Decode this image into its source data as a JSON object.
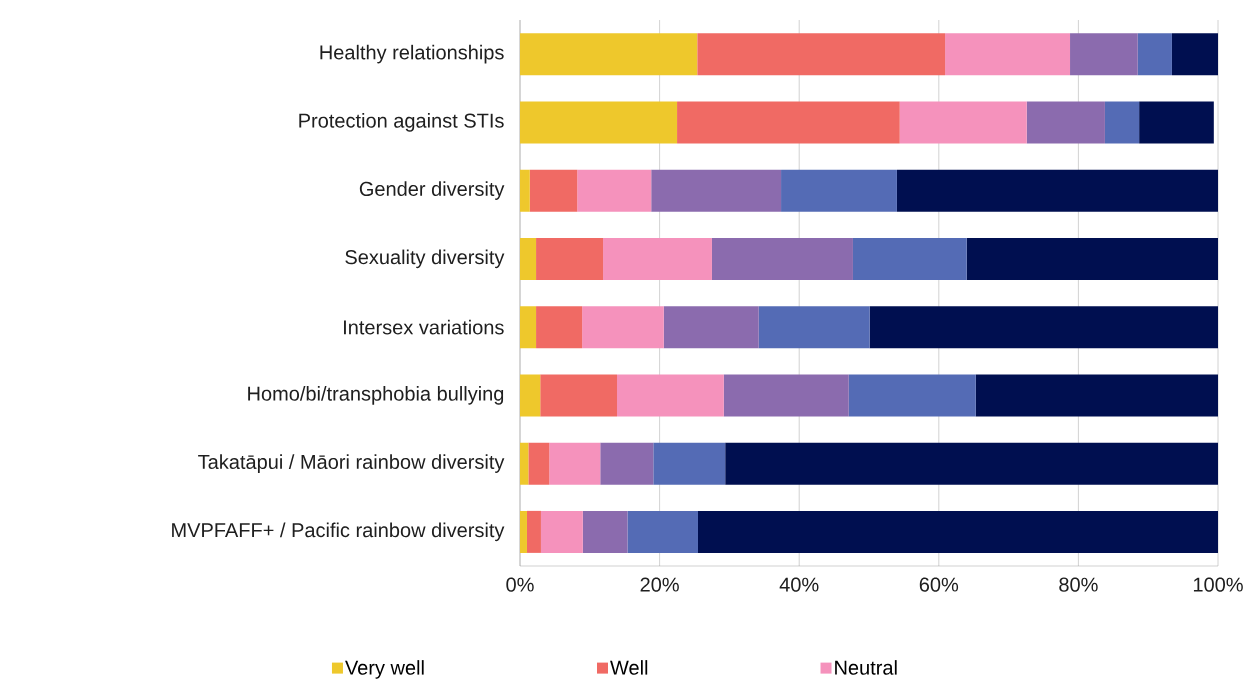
{
  "chart_data": {
    "type": "bar",
    "orientation": "horizontal",
    "stacked": true,
    "categories": [
      "Healthy relationships",
      "Protection against STIs",
      "Gender diversity",
      "Sexuality diversity",
      "Intersex variations",
      "Homo/bi/transphobia bullying",
      "Takatāpui / Māori rainbow diversity",
      "MVPFAFF+ / Pacific rainbow diversity"
    ],
    "series": [
      {
        "name": "Very well",
        "color": "#eec82c",
        "values": [
          25.4,
          22.5,
          1.4,
          2.3,
          2.3,
          2.9,
          1.2,
          1.0
        ]
      },
      {
        "name": "Well",
        "color": "#f06a64",
        "values": [
          35.5,
          31.9,
          6.8,
          9.6,
          6.6,
          11.0,
          3.0,
          2.0
        ]
      },
      {
        "name": "Neutral",
        "color": "#f592bc",
        "values": [
          17.9,
          18.2,
          10.6,
          15.6,
          11.7,
          15.3,
          7.3,
          6.0
        ]
      },
      {
        "color": "#8b6bae",
        "values": [
          9.7,
          11.2,
          18.6,
          20.2,
          13.6,
          17.9,
          7.6,
          6.4
        ]
      },
      {
        "color": "#546bb5",
        "values": [
          4.9,
          4.9,
          16.6,
          16.3,
          15.9,
          18.2,
          10.3,
          10.1
        ]
      },
      {
        "color": "#000f50",
        "values": [
          6.6,
          10.7,
          46.0,
          36.0,
          49.9,
          34.7,
          70.6,
          74.5
        ]
      }
    ],
    "xlim": [
      0,
      100
    ],
    "xticks": [
      {
        "value": 0,
        "label": "0%"
      },
      {
        "value": 20,
        "label": "20%"
      },
      {
        "value": 40,
        "label": "40%"
      },
      {
        "value": 60,
        "label": "60%"
      },
      {
        "value": 80,
        "label": "80%"
      },
      {
        "value": 100,
        "label": "100%"
      }
    ],
    "grid": "x",
    "legend": "bottom"
  }
}
